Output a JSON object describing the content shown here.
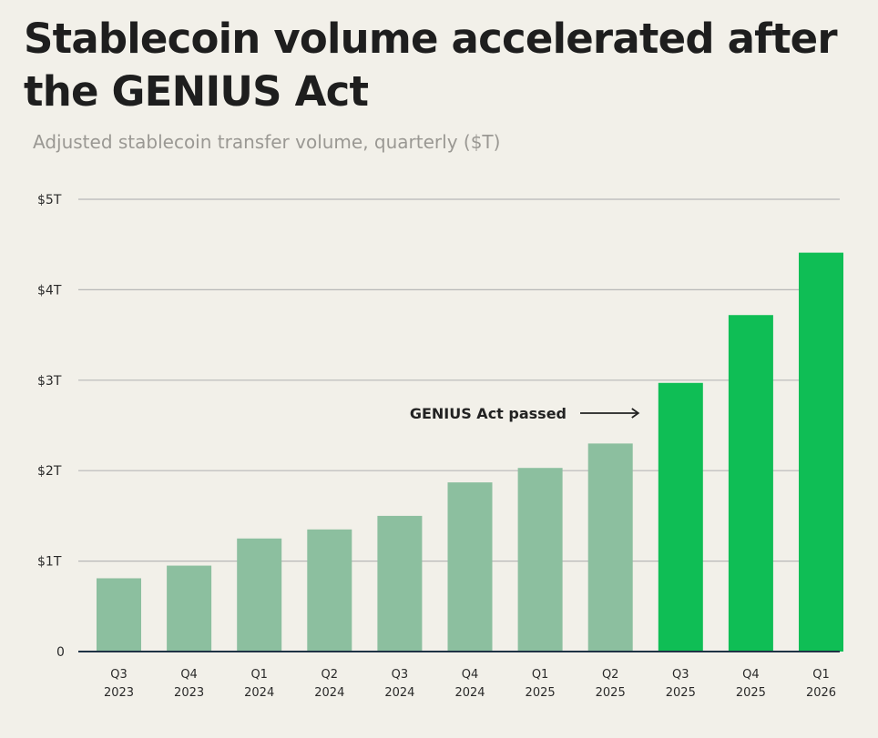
{
  "title_line1": "Stablecoin volume accelerated after",
  "title_line2": "the GENIUS Act",
  "subtitle": "Adjusted stablecoin transfer volume, quarterly ($T)",
  "chart_data": {
    "type": "bar",
    "title": "Stablecoin volume accelerated after the GENIUS Act",
    "subtitle": "Adjusted stablecoin transfer volume, quarterly ($T)",
    "xlabel": "",
    "ylabel": "",
    "ylim": [
      0,
      5
    ],
    "grid": true,
    "y_ticks": [
      {
        "value": 0,
        "label": "0"
      },
      {
        "value": 1,
        "label": "$1T"
      },
      {
        "value": 2,
        "label": "$2T"
      },
      {
        "value": 3,
        "label": "$3T"
      },
      {
        "value": 4,
        "label": "$4T"
      },
      {
        "value": 5,
        "label": "$5T"
      }
    ],
    "categories": [
      [
        "Q3",
        "2023"
      ],
      [
        "Q4",
        "2023"
      ],
      [
        "Q1",
        "2024"
      ],
      [
        "Q2",
        "2024"
      ],
      [
        "Q3",
        "2024"
      ],
      [
        "Q4",
        "2024"
      ],
      [
        "Q1",
        "2025"
      ],
      [
        "Q2",
        "2025"
      ],
      [
        "Q3",
        "2025"
      ],
      [
        "Q4",
        "2025"
      ],
      [
        "Q1",
        "2026"
      ]
    ],
    "values": [
      0.81,
      0.95,
      1.25,
      1.35,
      1.5,
      1.87,
      2.03,
      2.3,
      2.97,
      3.72,
      4.41
    ],
    "highlight": [
      false,
      false,
      false,
      false,
      false,
      false,
      false,
      false,
      true,
      true,
      true
    ],
    "colors": {
      "bar": "#8cbf9f",
      "highlight": "#0fbe55",
      "grid": "#b7b7b7",
      "axis": "#1f3245",
      "background": "#f2f0e9"
    },
    "annotation": {
      "text": "GENIUS Act passed",
      "points_to_index": 8
    }
  }
}
